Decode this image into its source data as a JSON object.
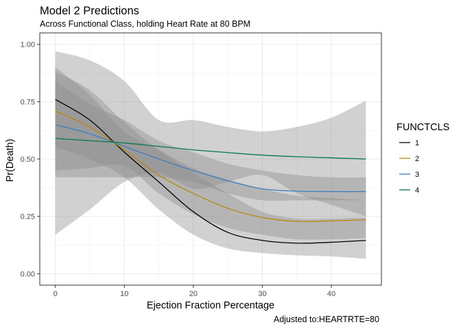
{
  "chart_data": {
    "type": "line",
    "title": "Model 2 Predictions",
    "subtitle": "Across Functional Class, holding Heart Rate at 80 BPM",
    "xlabel": "Ejection Fraction Percentage",
    "ylabel": "Pr(Death)",
    "caption": "Adjusted to:HEARTRTE=80",
    "xlim": [
      -2.25,
      47.25
    ],
    "ylim": [
      -0.05,
      1.05
    ],
    "x_ticks": [
      0,
      10,
      20,
      30,
      40
    ],
    "y_ticks": [
      0.0,
      0.25,
      0.5,
      0.75,
      1.0
    ],
    "y_tick_labels": [
      "0.00",
      "0.25",
      "0.50",
      "0.75",
      "1.00"
    ],
    "grid": true,
    "legend": {
      "title": "FUNCTCLS",
      "position": "right"
    },
    "confidence_band_color": "#8c8c8c",
    "x": [
      0,
      5,
      10,
      15,
      20,
      25,
      30,
      35,
      40,
      45
    ],
    "series": [
      {
        "name": "1",
        "color": "#000000",
        "values": [
          0.76,
          0.67,
          0.53,
          0.4,
          0.27,
          0.18,
          0.145,
          0.133,
          0.137,
          0.145
        ],
        "lower": [
          0.55,
          0.5,
          0.42,
          0.28,
          0.17,
          0.11,
          0.09,
          0.08,
          0.075,
          0.065
        ],
        "upper": [
          0.88,
          0.8,
          0.66,
          0.54,
          0.44,
          0.35,
          0.27,
          0.24,
          0.24,
          0.245
        ]
      },
      {
        "name": "2",
        "color": "#B8860B",
        "values": [
          0.71,
          0.64,
          0.54,
          0.43,
          0.35,
          0.285,
          0.245,
          0.228,
          0.23,
          0.235
        ],
        "lower": [
          0.45,
          0.46,
          0.47,
          0.35,
          0.26,
          0.2,
          0.17,
          0.15,
          0.15,
          0.155
        ],
        "upper": [
          0.9,
          0.78,
          0.62,
          0.54,
          0.46,
          0.41,
          0.37,
          0.34,
          0.33,
          0.32
        ]
      },
      {
        "name": "3",
        "color": "#3A7FC1",
        "values": [
          0.65,
          0.61,
          0.555,
          0.5,
          0.45,
          0.405,
          0.37,
          0.36,
          0.358,
          0.358
        ],
        "lower": [
          0.42,
          0.42,
          0.42,
          0.42,
          0.4,
          0.35,
          0.32,
          0.32,
          0.32,
          0.32
        ],
        "upper": [
          0.84,
          0.74,
          0.67,
          0.58,
          0.53,
          0.48,
          0.45,
          0.43,
          0.42,
          0.42
        ]
      },
      {
        "name": "4",
        "color": "#007A4D",
        "values": [
          0.59,
          0.58,
          0.57,
          0.555,
          0.54,
          0.528,
          0.517,
          0.51,
          0.505,
          0.5
        ],
        "lower": [
          0.17,
          0.28,
          0.4,
          0.44,
          0.37,
          0.4,
          0.43,
          0.35,
          0.3,
          0.25
        ],
        "upper": [
          0.97,
          0.93,
          0.84,
          0.67,
          0.67,
          0.64,
          0.62,
          0.64,
          0.68,
          0.755
        ]
      }
    ]
  }
}
